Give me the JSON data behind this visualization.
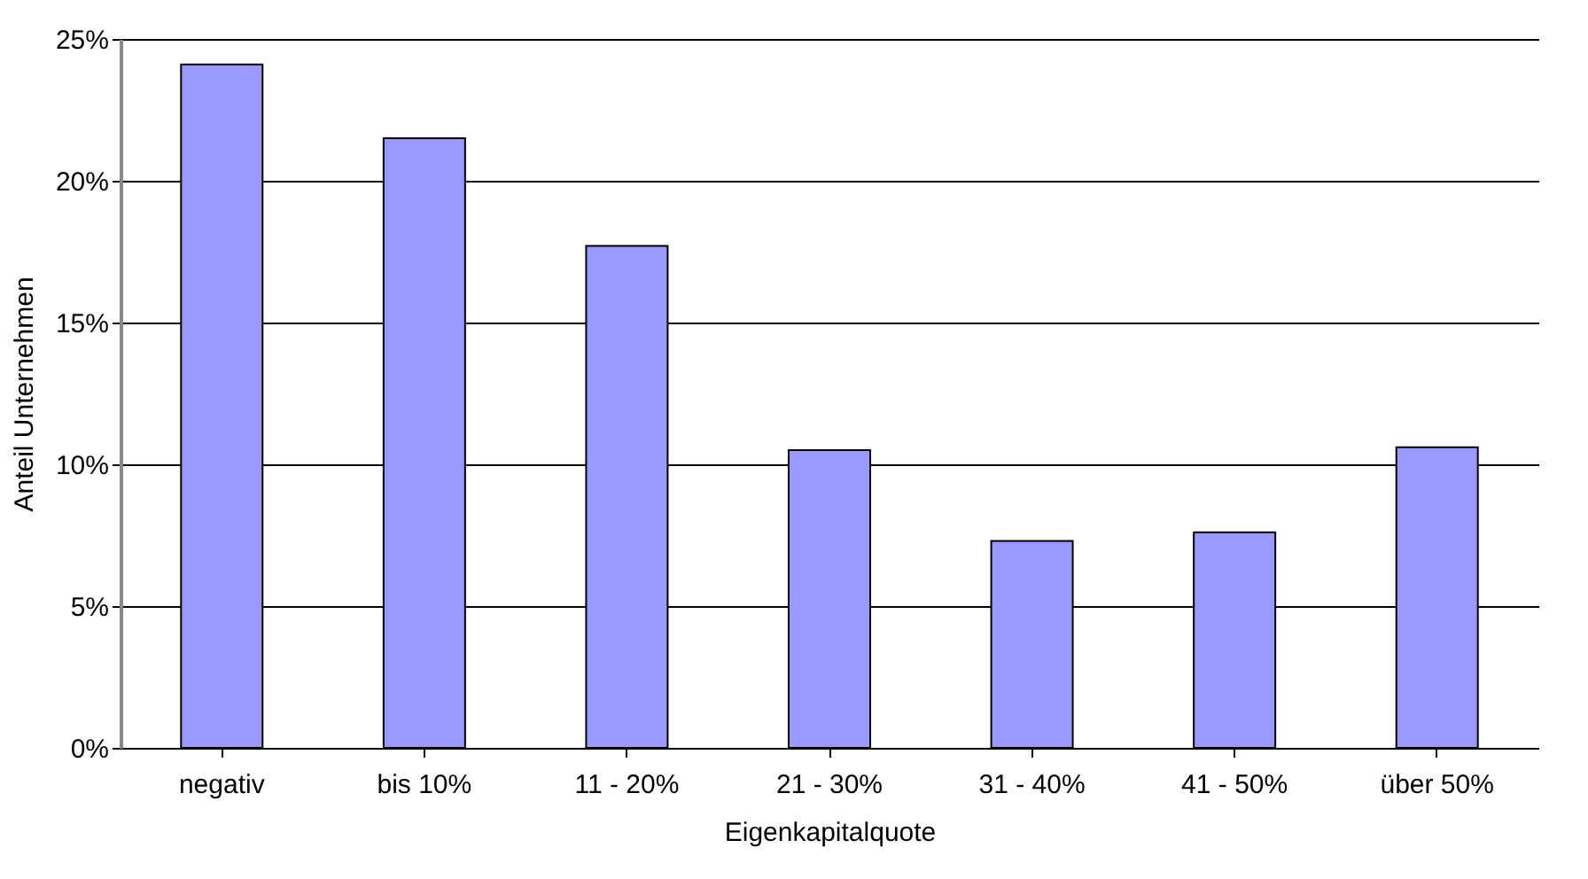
{
  "chart_data": {
    "type": "bar",
    "xlabel": "Eigenkapitalquote",
    "ylabel": "Anteil Unternehmen",
    "categories": [
      "negativ",
      "bis 10%",
      "11 - 20%",
      "21 - 30%",
      "31 - 40%",
      "41 - 50%",
      "über 50%"
    ],
    "values": [
      24.1,
      21.5,
      17.7,
      10.5,
      7.3,
      7.6,
      10.6
    ],
    "color": "#9999ff",
    "ylim": [
      0,
      25
    ],
    "yticks": [
      {
        "value": 0,
        "label": "0%"
      },
      {
        "value": 5,
        "label": "5%"
      },
      {
        "value": 10,
        "label": "10%"
      },
      {
        "value": 15,
        "label": "15%"
      },
      {
        "value": 20,
        "label": "20%"
      },
      {
        "value": 25,
        "label": "25%"
      }
    ],
    "grid": "y"
  }
}
